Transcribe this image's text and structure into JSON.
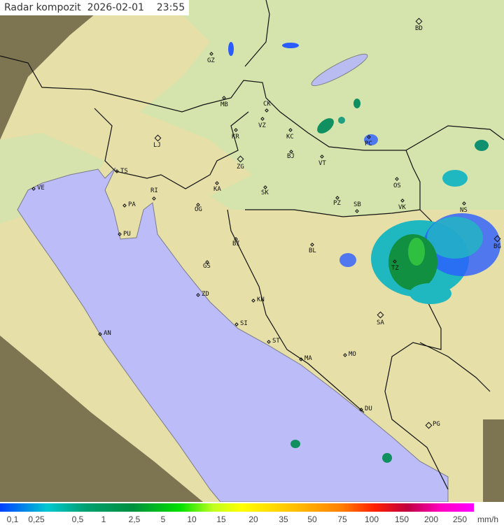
{
  "title": {
    "label": "Radar kompozit",
    "date": "2026-02-01",
    "time": "23:55"
  },
  "legend": {
    "unit": "mm/h",
    "values": [
      "0,1",
      "0,25",
      "0,5",
      "1",
      "2,5",
      "5",
      "10",
      "15",
      "20",
      "35",
      "50",
      "75",
      "100",
      "150",
      "200",
      "250"
    ],
    "colors": {
      "low": "#0040ff",
      "mid": "#00a070",
      "high": "#ff00ff"
    }
  },
  "map": {
    "colors": {
      "sea": "#bcbcf8",
      "land": "#d2e4ac",
      "outside": "#7d7452",
      "rain_light": "#2a5cff",
      "rain_mid": "#20b8c0",
      "rain_heavy": "#109040"
    },
    "cities": [
      "BD",
      "GZ",
      "MB",
      "CK",
      "VZ",
      "KR",
      "KC",
      "LJ",
      "ZG",
      "BJ",
      "VT",
      "PC",
      "TS",
      "VE",
      "KA",
      "SK",
      "OS",
      "RI",
      "PA",
      "OG",
      "PZ",
      "SB",
      "VK",
      "NS",
      "PU",
      "BI",
      "BL",
      "BG",
      "TZ",
      "GS",
      "ZD",
      "KN",
      "SA",
      "AN",
      "SI",
      "ST",
      "MO",
      "MA",
      "DU",
      "PG"
    ]
  }
}
